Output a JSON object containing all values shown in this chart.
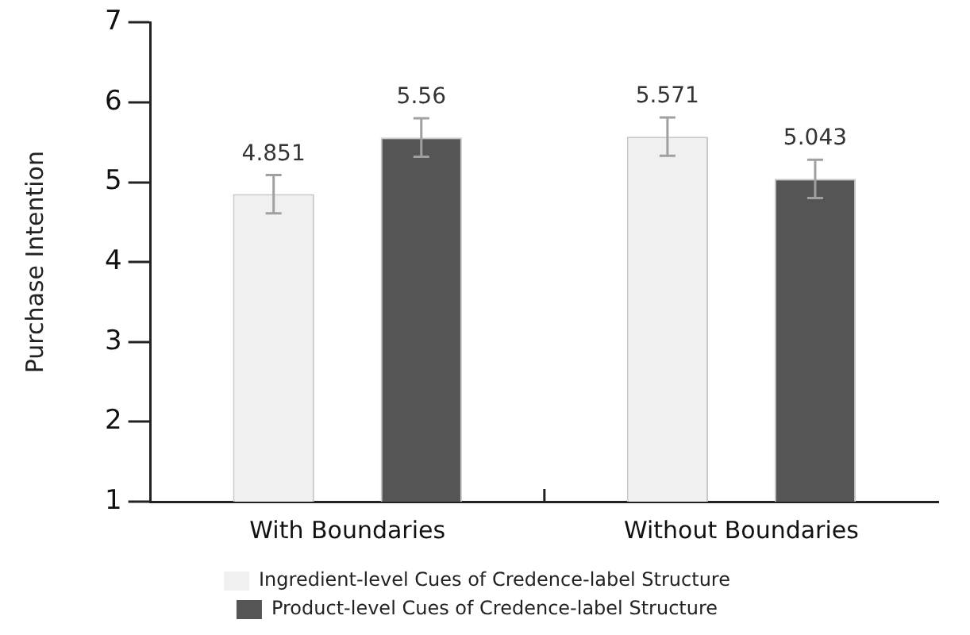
{
  "chart_data": {
    "type": "bar",
    "ylabel": "Purchase Intention",
    "categories": [
      "With Boundaries",
      "Without Boundaries"
    ],
    "series": [
      {
        "name": "Ingredient-level Cues of Credence-label Structure",
        "color": "#f0f0f0",
        "values": [
          4.851,
          5.571
        ],
        "errors": [
          0.24,
          0.24
        ]
      },
      {
        "name": "Product-level Cues of Credence-label Structure",
        "color": "#555555",
        "values": [
          5.56,
          5.043
        ],
        "errors": [
          0.24,
          0.24
        ]
      }
    ],
    "ylim": [
      1,
      7
    ],
    "yticks": [
      1,
      2,
      3,
      4,
      5,
      6,
      7
    ],
    "grid": false,
    "legend": "bottom",
    "data_labels": true
  }
}
